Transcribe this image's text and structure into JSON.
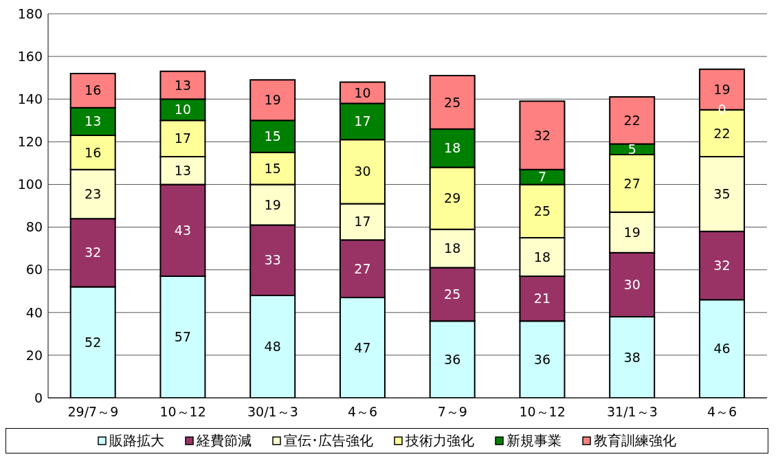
{
  "chart_data": {
    "type": "bar",
    "stacked": true,
    "data_labels": true,
    "grid": "y",
    "legend": "bottom",
    "categories": [
      "29/7～9",
      "10～12",
      "30/1～3",
      "4～6",
      "7～9",
      "10～12",
      "31/1～3",
      "4～6"
    ],
    "ylim": [
      0,
      180
    ],
    "yticks": [
      0,
      20,
      40,
      60,
      80,
      100,
      120,
      140,
      160,
      180
    ],
    "series": [
      {
        "name": "販路拡大",
        "color": "#ccffff",
        "values": [
          52,
          57,
          48,
          47,
          36,
          36,
          38,
          46
        ]
      },
      {
        "name": "経費節減",
        "color": "#993366",
        "values": [
          32,
          43,
          33,
          27,
          25,
          21,
          30,
          32
        ]
      },
      {
        "name": "宣伝･広告強化",
        "color": "#ffffcc",
        "values": [
          23,
          13,
          19,
          17,
          18,
          18,
          19,
          35
        ]
      },
      {
        "name": "技術力強化",
        "color": "#ffff99",
        "values": [
          16,
          17,
          15,
          30,
          29,
          25,
          27,
          22
        ]
      },
      {
        "name": "新規事業",
        "color": "#008000",
        "values": [
          13,
          10,
          15,
          17,
          18,
          7,
          5,
          0
        ]
      },
      {
        "name": "教育訓練強化",
        "color": "#ff8080",
        "values": [
          16,
          13,
          19,
          10,
          25,
          32,
          22,
          19
        ]
      }
    ]
  }
}
